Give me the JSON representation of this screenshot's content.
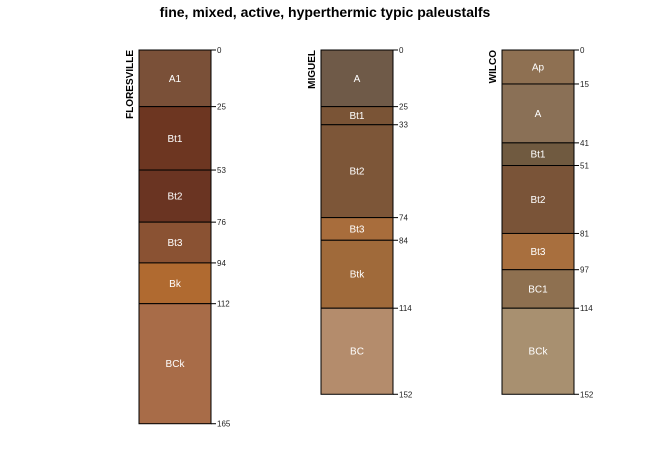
{
  "title": "fine, mixed, active, hyperthermic typic paleustalfs",
  "profiles": [
    {
      "name": "FLORESVILLE",
      "max_depth": 165,
      "horizons": [
        {
          "name": "A1",
          "top": 0,
          "bottom": 25,
          "color": "#7a5038"
        },
        {
          "name": "Bt1",
          "top": 25,
          "bottom": 53,
          "color": "#6d3621"
        },
        {
          "name": "Bt2",
          "top": 53,
          "bottom": 76,
          "color": "#6a3422"
        },
        {
          "name": "Bt3",
          "top": 76,
          "bottom": 94,
          "color": "#8a5233"
        },
        {
          "name": "Bk",
          "top": 94,
          "bottom": 112,
          "color": "#b06a30"
        },
        {
          "name": "BCk",
          "top": 112,
          "bottom": 165,
          "color": "#a86c48"
        }
      ],
      "depth_labels": [
        "0",
        "25",
        "53",
        "76",
        "94",
        "112",
        "165"
      ]
    },
    {
      "name": "MIGUEL",
      "max_depth": 152,
      "horizons": [
        {
          "name": "A",
          "top": 0,
          "bottom": 25,
          "color": "#6f5a48"
        },
        {
          "name": "Bt1",
          "top": 25,
          "bottom": 33,
          "color": "#7a5436"
        },
        {
          "name": "Bt2",
          "top": 33,
          "bottom": 74,
          "color": "#7d5638"
        },
        {
          "name": "Bt3",
          "top": 74,
          "bottom": 84,
          "color": "#a86d3c"
        },
        {
          "name": "Btk",
          "top": 84,
          "bottom": 114,
          "color": "#a06a3a"
        },
        {
          "name": "BC",
          "top": 114,
          "bottom": 152,
          "color": "#b48c6c"
        }
      ],
      "depth_labels": [
        "0",
        "25",
        "33",
        "74",
        "84",
        "114",
        "152"
      ]
    },
    {
      "name": "WILCO",
      "max_depth": 152,
      "horizons": [
        {
          "name": "Ap",
          "top": 0,
          "bottom": 15,
          "color": "#8e7052"
        },
        {
          "name": "A",
          "top": 15,
          "bottom": 41,
          "color": "#8a7056"
        },
        {
          "name": "Bt1",
          "top": 41,
          "bottom": 51,
          "color": "#705a40"
        },
        {
          "name": "Bt2",
          "top": 51,
          "bottom": 81,
          "color": "#7a5438"
        },
        {
          "name": "Bt3",
          "top": 81,
          "bottom": 97,
          "color": "#a86f3e"
        },
        {
          "name": "BC1",
          "top": 97,
          "bottom": 114,
          "color": "#8e7050"
        },
        {
          "name": "BCk",
          "top": 114,
          "bottom": 152,
          "color": "#a89070"
        }
      ],
      "depth_labels": [
        "0",
        "15",
        "41",
        "51",
        "81",
        "97",
        "114",
        "152"
      ]
    }
  ]
}
